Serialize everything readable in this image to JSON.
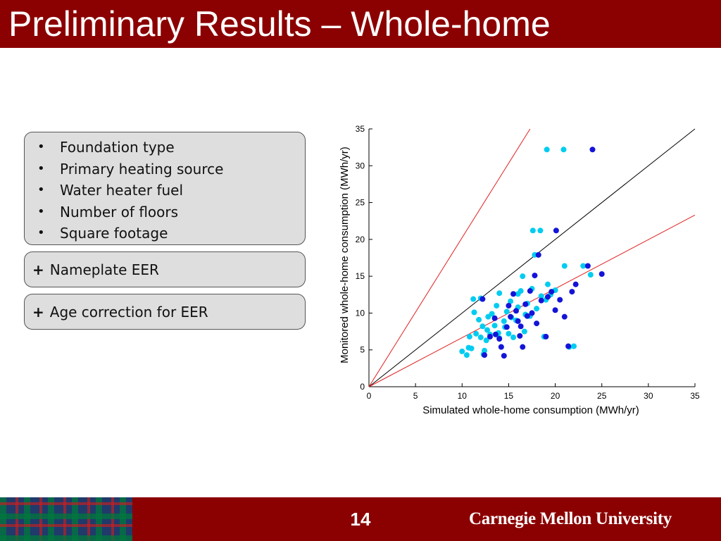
{
  "slide": {
    "title": "Preliminary Results – Whole-home",
    "page_number": "14",
    "university": "Carnegie Mellon University"
  },
  "left_panel": {
    "bullet_glyph": "•",
    "bullets": [
      "Foundation type",
      "Primary heating source",
      "Water heater fuel",
      "Number of floors",
      "Square footage"
    ],
    "plus_glyph": "+",
    "addon_1": "Nameplate EER",
    "addon_2": "Age correction for EER"
  },
  "colors": {
    "title_bar": "#8b0000",
    "footer_bar": "#8b0000",
    "series_a": "#00ccf0",
    "series_b": "#1414d8",
    "reference_line": "#000000",
    "bound_lines": "#e02020"
  },
  "chart_data": {
    "type": "scatter",
    "xlabel": "Simulated whole-home consumption (MWh/yr)",
    "ylabel": "Monitored whole-home consumption (MWh/yr)",
    "xlim": [
      0,
      35
    ],
    "ylim": [
      0,
      35
    ],
    "xticks": [
      0,
      5,
      10,
      15,
      20,
      25,
      30,
      35
    ],
    "yticks": [
      0,
      5,
      10,
      15,
      20,
      25,
      30,
      35
    ],
    "grid": false,
    "lines": [
      {
        "role": "reference",
        "x": [
          0,
          35
        ],
        "y": [
          0,
          35
        ]
      },
      {
        "role": "upper",
        "x": [
          0,
          17.3
        ],
        "y": [
          0,
          35
        ]
      },
      {
        "role": "lower",
        "x": [
          0,
          35
        ],
        "y": [
          0,
          23.3
        ]
      }
    ],
    "series": [
      {
        "marker": "cyan",
        "x": [
          10,
          10.5,
          10.8,
          11,
          11.2,
          11.5,
          11.8,
          12,
          12,
          12.2,
          12.4,
          12.6,
          12.8,
          13,
          13.2,
          13.5,
          13.7,
          14,
          14,
          14.2,
          14.5,
          14.8,
          15,
          15.2,
          15.5,
          15.8,
          16,
          16,
          16.3,
          16.5,
          16.8,
          17,
          17.3,
          17.5,
          17.8,
          18,
          18.5,
          18.8,
          19,
          19.2,
          19.5,
          20,
          21,
          21.5,
          22,
          23,
          23.8,
          19.1,
          20.9,
          17.6,
          18.4,
          11.3,
          12.7,
          14.6,
          16.7,
          15.3,
          13.9,
          10.7,
          12.3
        ],
        "y": [
          4.8,
          4.3,
          6.8,
          5.2,
          11.9,
          7.2,
          9.1,
          6.7,
          12,
          8.2,
          4.9,
          6.3,
          9.5,
          7.1,
          9.9,
          8.3,
          11,
          6.6,
          12.7,
          5.4,
          8.9,
          10.2,
          7.2,
          11.6,
          6.7,
          9,
          10.8,
          12.6,
          13,
          15,
          9.8,
          11.3,
          9.6,
          13.3,
          17.9,
          10.6,
          12.3,
          6.8,
          11.8,
          13.9,
          12.5,
          13.1,
          16.4,
          5.4,
          5.5,
          16.4,
          15.2,
          32.2,
          32.2,
          21.2,
          21.2,
          10.1,
          7.7,
          8.1,
          7.5,
          9.4,
          7.3,
          5.3,
          4.4
        ]
      },
      {
        "marker": "blue",
        "x": [
          12.2,
          12.4,
          13,
          13.5,
          14,
          14.5,
          14.8,
          15,
          15.2,
          15.5,
          15.8,
          16,
          16.2,
          16.5,
          16.8,
          17,
          17.3,
          17.5,
          18,
          18.5,
          19,
          19.2,
          20,
          20.5,
          21,
          21.4,
          21.8,
          22.2,
          23.5,
          25,
          24,
          20.1,
          18.2,
          14.2,
          16.3,
          17.8,
          19.6,
          13.6
        ],
        "y": [
          11.9,
          4.3,
          6.8,
          9.3,
          6.5,
          4.2,
          8.1,
          11,
          9.5,
          12.6,
          10.3,
          8.9,
          6.9,
          5.4,
          11.2,
          9.6,
          13,
          10,
          8.6,
          11.7,
          6.8,
          12.2,
          10.4,
          11.8,
          9.5,
          5.5,
          12.9,
          13.9,
          16.4,
          15.3,
          32.2,
          21.2,
          17.9,
          5.4,
          8.2,
          15.1,
          12.9,
          7.1
        ]
      }
    ]
  }
}
